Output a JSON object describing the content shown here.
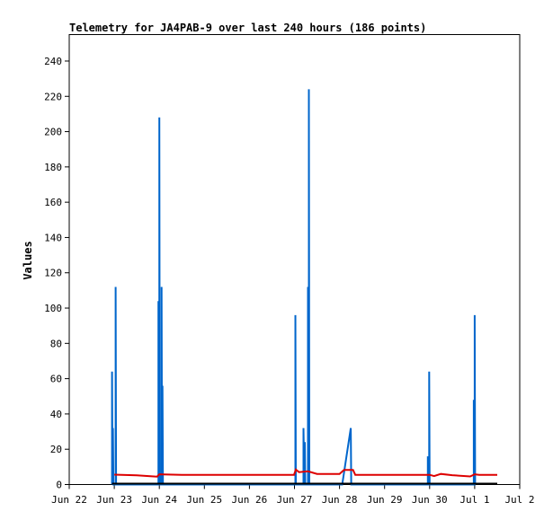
{
  "chart_data": {
    "type": "line",
    "title": "Telemetry for JA4PAB-9 over last 240 hours (186 points)",
    "xlabel": "",
    "ylabel": "Values",
    "xlim": [
      "Jun 22",
      "Jul 2"
    ],
    "ylim": [
      0,
      255
    ],
    "x_ticks": [
      "Jun 22",
      "Jun 23",
      "Jun 24",
      "Jun 25",
      "Jun 26",
      "Jun 27",
      "Jun 28",
      "Jun 29",
      "Jun 30",
      "Jul 1",
      "Jul 2"
    ],
    "y_ticks": [
      0,
      20,
      40,
      60,
      80,
      100,
      120,
      140,
      160,
      180,
      200,
      220,
      240
    ],
    "grid": false,
    "legend": "none",
    "units": "days since Jun 22",
    "series": [
      {
        "color": "#0066cc",
        "points": [
          [
            0.95,
            0
          ],
          [
            0.95,
            64
          ],
          [
            0.96,
            0
          ],
          [
            0.97,
            32
          ],
          [
            0.98,
            0
          ],
          [
            1.03,
            0
          ],
          [
            1.03,
            112
          ],
          [
            1.04,
            0
          ],
          [
            1.98,
            0
          ],
          [
            1.98,
            104
          ],
          [
            1.99,
            0
          ],
          [
            2.0,
            0
          ],
          [
            2.0,
            208
          ],
          [
            2.01,
            0
          ],
          [
            2.05,
            0
          ],
          [
            2.05,
            112
          ],
          [
            2.06,
            0
          ],
          [
            2.07,
            0
          ],
          [
            2.07,
            56
          ],
          [
            2.08,
            0
          ],
          [
            5.02,
            0
          ],
          [
            5.02,
            96
          ],
          [
            5.03,
            0
          ],
          [
            5.2,
            0
          ],
          [
            5.2,
            32
          ],
          [
            5.22,
            0
          ],
          [
            5.23,
            24
          ],
          [
            5.24,
            0
          ],
          [
            5.3,
            0
          ],
          [
            5.3,
            112
          ],
          [
            5.31,
            0
          ],
          [
            5.32,
            0
          ],
          [
            5.32,
            224
          ],
          [
            5.33,
            0
          ],
          [
            6.06,
            0
          ],
          [
            6.25,
            32
          ],
          [
            6.26,
            0
          ],
          [
            7.96,
            0
          ],
          [
            7.96,
            16
          ],
          [
            7.97,
            0
          ],
          [
            7.99,
            0
          ],
          [
            7.99,
            64
          ],
          [
            8.0,
            0
          ],
          [
            8.98,
            0
          ],
          [
            8.98,
            48
          ],
          [
            8.99,
            0
          ],
          [
            9.0,
            0
          ],
          [
            9.0,
            96
          ],
          [
            9.01,
            0
          ]
        ]
      },
      {
        "color": "#dd0000",
        "points": [
          [
            1.0,
            5.6
          ],
          [
            1.5,
            5.2
          ],
          [
            1.8,
            4.7
          ],
          [
            1.95,
            4.5
          ],
          [
            2.0,
            5.8
          ],
          [
            2.5,
            5.5
          ],
          [
            3.0,
            5.5
          ],
          [
            4.0,
            5.5
          ],
          [
            4.99,
            5.5
          ],
          [
            5.03,
            8.5
          ],
          [
            5.1,
            7.0
          ],
          [
            5.3,
            7.5
          ],
          [
            5.5,
            6.0
          ],
          [
            6.0,
            6.0
          ],
          [
            6.1,
            8.3
          ],
          [
            6.3,
            8.3
          ],
          [
            6.35,
            5.5
          ],
          [
            7.0,
            5.5
          ],
          [
            8.0,
            5.5
          ],
          [
            8.1,
            4.8
          ],
          [
            8.25,
            6.0
          ],
          [
            8.5,
            5.3
          ],
          [
            8.9,
            4.6
          ],
          [
            9.0,
            5.8
          ],
          [
            9.1,
            5.5
          ],
          [
            9.5,
            5.5
          ]
        ]
      },
      {
        "color": "#000000",
        "points": [
          [
            0.95,
            0.5
          ],
          [
            9.5,
            0.5
          ]
        ]
      }
    ]
  }
}
